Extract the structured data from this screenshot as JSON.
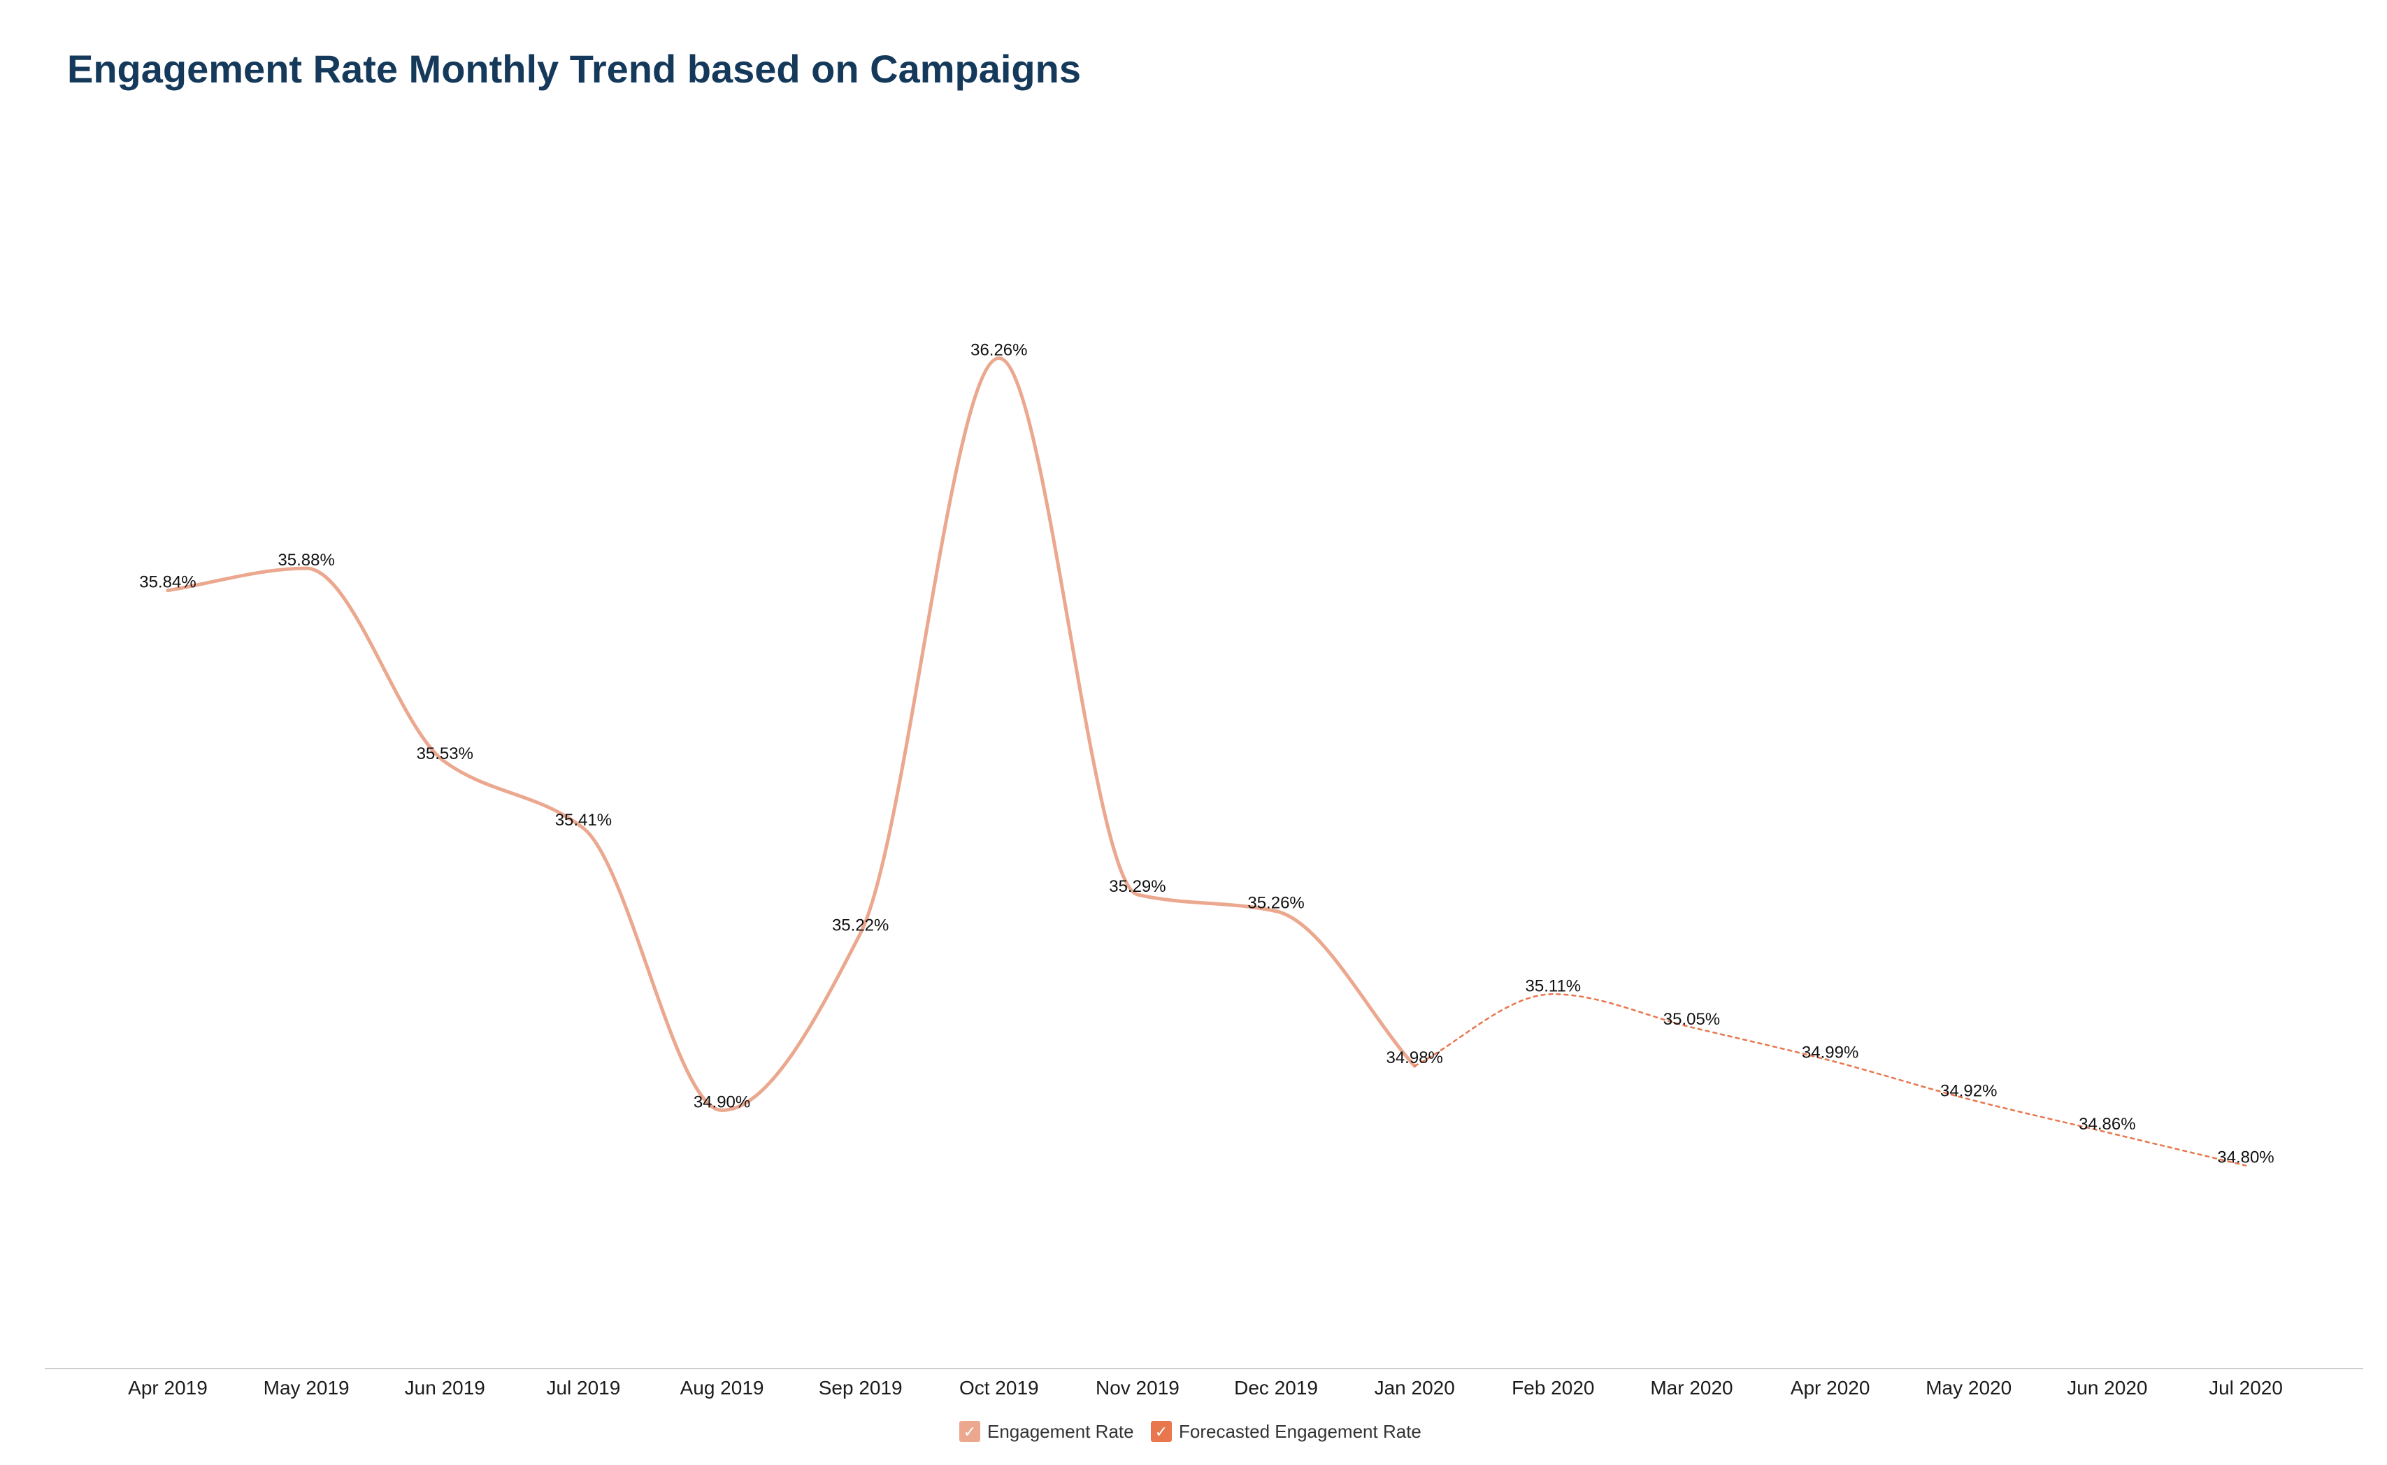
{
  "title": "Engagement Rate Monthly Trend based on Campaigns",
  "colors": {
    "actual": "#eba88f",
    "forecast": "#e8774e",
    "title": "#14395a",
    "axis": "#cfcfcf"
  },
  "legend": {
    "actual_label": "Engagement Rate",
    "forecast_label": "Forecasted Engagement Rate"
  },
  "chart_data": {
    "type": "line",
    "title": "Engagement Rate Monthly Trend based on Campaigns",
    "xlabel": "",
    "ylabel": "",
    "categories": [
      "Apr 2019",
      "May 2019",
      "Jun 2019",
      "Jul 2019",
      "Aug 2019",
      "Sep 2019",
      "Oct 2019",
      "Nov 2019",
      "Dec 2019",
      "Jan 2020",
      "Feb 2020",
      "Mar 2020",
      "Apr 2020",
      "May 2020",
      "Jun 2020",
      "Jul 2020"
    ],
    "series": [
      {
        "name": "Engagement Rate",
        "style": "solid",
        "values": [
          35.84,
          35.88,
          35.53,
          35.41,
          34.9,
          35.22,
          36.26,
          35.29,
          35.26,
          34.98,
          null,
          null,
          null,
          null,
          null,
          null
        ],
        "labels": [
          "35.84%",
          "35.88%",
          "35.53%",
          "35.41%",
          "34.90%",
          "35.22%",
          "36.26%",
          "35.29%",
          "35.26%",
          "34.98%",
          "",
          "",
          "",
          "",
          "",
          ""
        ]
      },
      {
        "name": "Forecasted Engagement Rate",
        "style": "dotted",
        "values": [
          null,
          null,
          null,
          null,
          null,
          null,
          null,
          null,
          null,
          34.98,
          35.11,
          35.05,
          34.99,
          34.92,
          34.86,
          34.8
        ],
        "labels": [
          "",
          "",
          "",
          "",
          "",
          "",
          "",
          "",
          "",
          "",
          "35.11%",
          "35.05%",
          "34.99%",
          "34.92%",
          "34.86%",
          "34.80%"
        ]
      }
    ],
    "ylim": [
      34.62,
      36.44
    ],
    "grid": false,
    "legend_position": "bottom-center"
  }
}
